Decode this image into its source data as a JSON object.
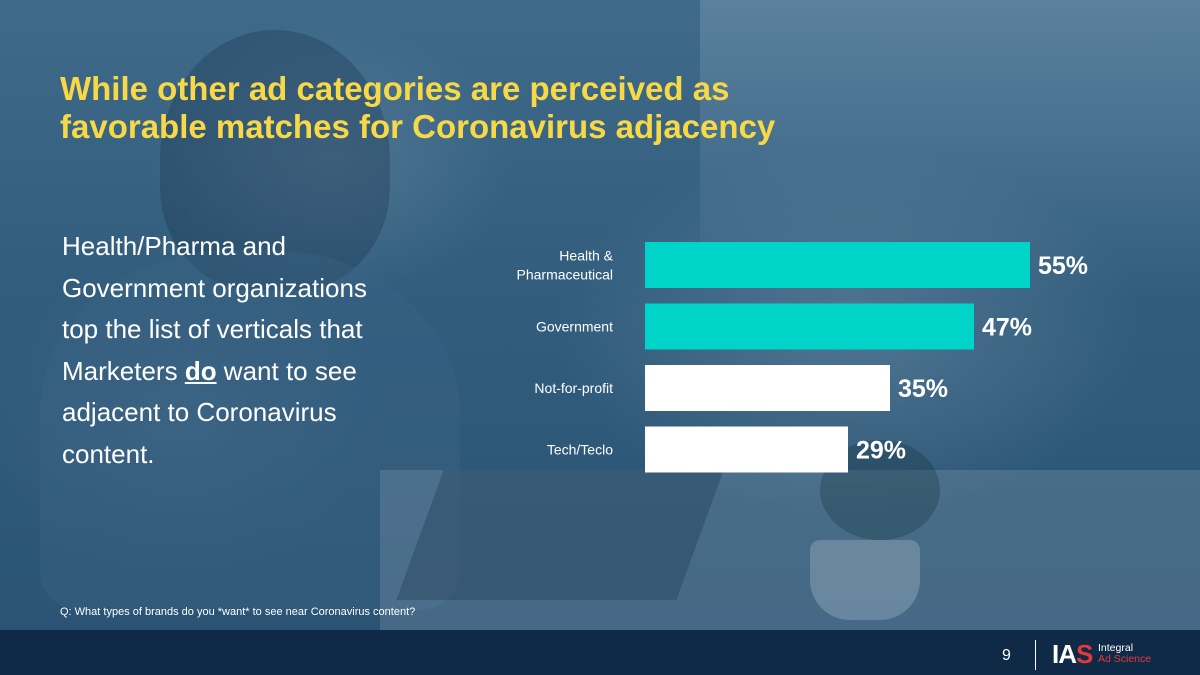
{
  "slide": {
    "title_line1": "While other ad categories are perceived as",
    "title_line2": "favorable matches for Coronavirus adjacency",
    "body_before": "Health/Pharma and Government organizations top the list of verticals that Marketers ",
    "body_emphasis": "do",
    "body_after": " want to see adjacent to Coronavirus content.",
    "question": "Q: What types of brands do you *want* to see near Coronavirus content?",
    "page_number": "9"
  },
  "logo": {
    "mark_main": "IA",
    "mark_accent": "S",
    "name_line1": "Integral",
    "name_line2": "Ad Science"
  },
  "colors": {
    "title": "#f7d847",
    "highlight_bar": "#00d4c8",
    "normal_bar": "#ffffff",
    "footer": "#0f2a47",
    "brand_red": "#e23a3a"
  },
  "chart_data": {
    "type": "bar",
    "orientation": "horizontal",
    "categories": [
      [
        "Health &",
        "Pharmaceutical"
      ],
      [
        "Government"
      ],
      [
        "Not-for-profit"
      ],
      [
        "Tech/Teclo"
      ]
    ],
    "values": [
      55,
      47,
      35,
      29
    ],
    "value_labels": [
      "55%",
      "47%",
      "35%",
      "29%"
    ],
    "highlighted": [
      true,
      true,
      false,
      false
    ],
    "title": "",
    "xlabel": "",
    "ylabel": "",
    "xlim": [
      0,
      100
    ],
    "grid": false,
    "legend": "none"
  }
}
